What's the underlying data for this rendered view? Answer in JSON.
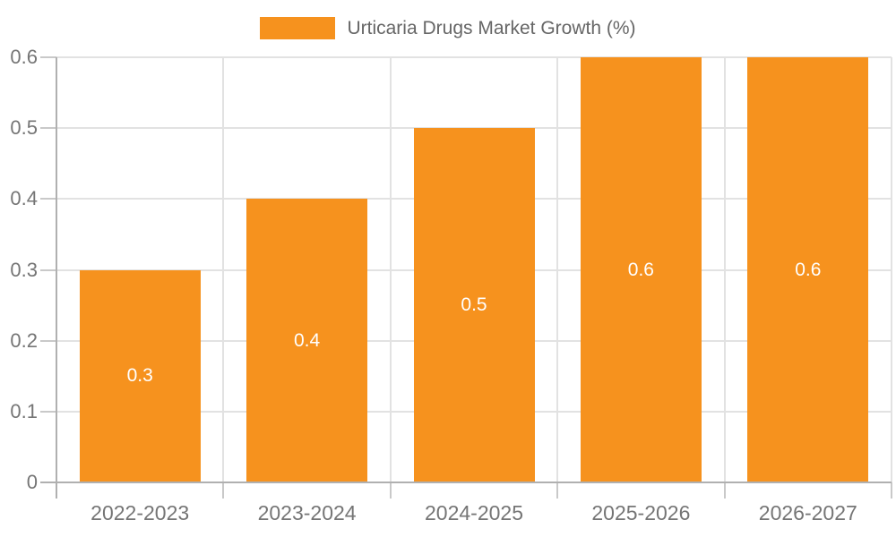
{
  "chart_data": {
    "type": "bar",
    "title": "",
    "legend": "Urticaria Drugs Market Growth (%)",
    "legend_position": "top-center",
    "categories": [
      "2022-2023",
      "2023-2024",
      "2024-2025",
      "2025-2026",
      "2026-2027"
    ],
    "series": [
      {
        "name": "Urticaria Drugs Market Growth (%)",
        "values": [
          0.3,
          0.4,
          0.5,
          0.6,
          0.6
        ],
        "bar_labels": [
          "0.3",
          "0.4",
          "0.5",
          "0.6",
          "0.6"
        ]
      }
    ],
    "xlabel": "",
    "ylabel": "",
    "ylim": [
      0,
      0.6
    ],
    "yticks": [
      0,
      0.1,
      0.2,
      0.3,
      0.4,
      0.5,
      0.6
    ],
    "ytick_labels": [
      "0",
      "0.1",
      "0.2",
      "0.3",
      "0.4",
      "0.5",
      "0.6"
    ],
    "grid": true
  },
  "colors": {
    "bar": "#F6921E",
    "bar_label": "#FFFFFF",
    "gridline": "#E2E2E2",
    "axis_line": "#B0B0B0",
    "tick": "#C9C9C9",
    "axis_text": "#757575",
    "legend_text": "#666666"
  }
}
